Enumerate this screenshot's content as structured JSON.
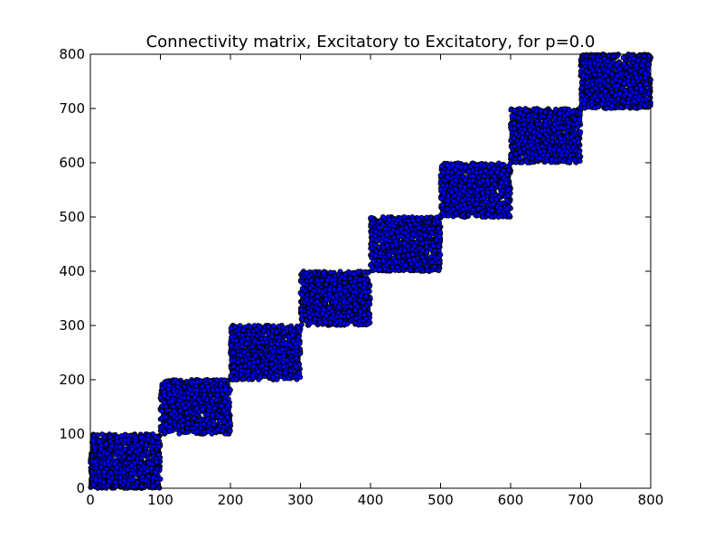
{
  "chart_data": {
    "type": "scatter",
    "title": "Connectivity matrix, Excitatory to Excitatory, for p=0.0",
    "xlabel": "",
    "ylabel": "",
    "xlim": [
      0,
      800
    ],
    "ylim": [
      0,
      800
    ],
    "xticks": [
      0,
      100,
      200,
      300,
      400,
      500,
      600,
      700,
      800
    ],
    "yticks": [
      0,
      100,
      200,
      300,
      400,
      500,
      600,
      700,
      800
    ],
    "grid": false,
    "marker_color": "#0000ff",
    "marker_edge_color": "#000000",
    "blocks": [
      {
        "x_range": [
          0,
          100
        ],
        "y_range": [
          0,
          100
        ]
      },
      {
        "x_range": [
          100,
          200
        ],
        "y_range": [
          100,
          200
        ]
      },
      {
        "x_range": [
          200,
          300
        ],
        "y_range": [
          200,
          300
        ]
      },
      {
        "x_range": [
          300,
          400
        ],
        "y_range": [
          300,
          400
        ]
      },
      {
        "x_range": [
          400,
          500
        ],
        "y_range": [
          400,
          500
        ]
      },
      {
        "x_range": [
          500,
          600
        ],
        "y_range": [
          500,
          600
        ]
      },
      {
        "x_range": [
          600,
          700
        ],
        "y_range": [
          600,
          700
        ]
      },
      {
        "x_range": [
          700,
          800
        ],
        "y_range": [
          700,
          800
        ]
      }
    ]
  }
}
